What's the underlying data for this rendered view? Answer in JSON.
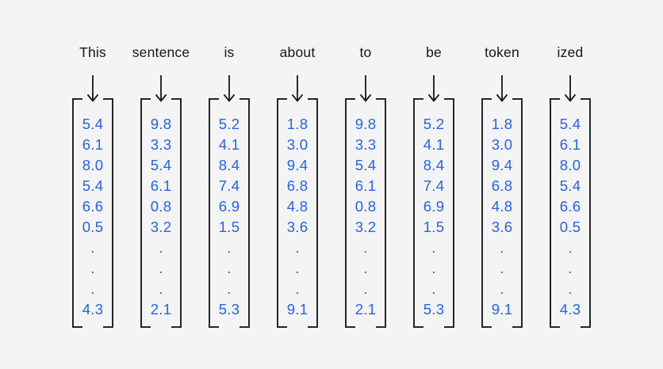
{
  "colors": {
    "background": "#f4f4f4",
    "word_text": "#161616",
    "arrow": "#161616",
    "bracket": "#21272a",
    "number": "#2563eb"
  },
  "tokens": [
    {
      "word": "This",
      "values": [
        "5.4",
        "6.1",
        "8.0",
        "5.4",
        "6.6",
        "0.5",
        ".",
        ".",
        ".",
        "4.3"
      ]
    },
    {
      "word": "sentence",
      "values": [
        "9.8",
        "3.3",
        "5.4",
        "6.1",
        "0.8",
        "3.2",
        ".",
        ".",
        ".",
        "2.1"
      ]
    },
    {
      "word": "is",
      "values": [
        "5.2",
        "4.1",
        "8.4",
        "7.4",
        "6.9",
        "1.5",
        ".",
        ".",
        ".",
        "5.3"
      ]
    },
    {
      "word": "about",
      "values": [
        "1.8",
        "3.0",
        "9.4",
        "6.8",
        "4.8",
        "3.6",
        ".",
        ".",
        ".",
        "9.1"
      ]
    },
    {
      "word": "to",
      "values": [
        "9.8",
        "3.3",
        "5.4",
        "6.1",
        "0.8",
        "3.2",
        ".",
        ".",
        ".",
        "2.1"
      ]
    },
    {
      "word": "be",
      "values": [
        "5.2",
        "4.1",
        "8.4",
        "7.4",
        "6.9",
        "1.5",
        ".",
        ".",
        ".",
        "5.3"
      ]
    },
    {
      "word": "token",
      "values": [
        "1.8",
        "3.0",
        "9.4",
        "6.8",
        "4.8",
        "3.6",
        ".",
        ".",
        ".",
        "9.1"
      ]
    },
    {
      "word": "ized",
      "values": [
        "5.4",
        "6.1",
        "8.0",
        "5.4",
        "6.6",
        "0.5",
        ".",
        ".",
        ".",
        "4.3"
      ]
    }
  ]
}
